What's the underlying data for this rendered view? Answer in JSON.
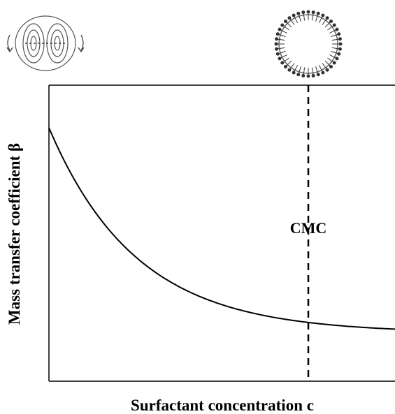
{
  "x_label": "Surfactant concentration c",
  "y_label": "Mass transfer coefficient β",
  "annotation": "CMC"
}
